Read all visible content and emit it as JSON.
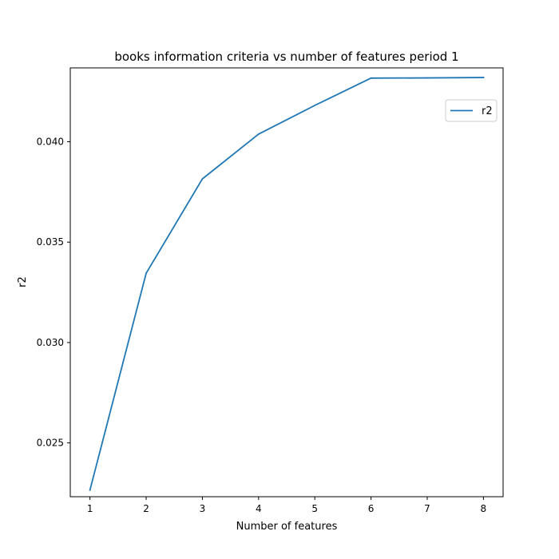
{
  "chart_data": {
    "type": "line",
    "title": "books information criteria vs number of features period 1",
    "xlabel": "Number of features",
    "ylabel": "r2",
    "x": [
      1,
      2,
      3,
      4,
      5,
      6,
      7,
      8
    ],
    "series": [
      {
        "name": "r2",
        "color": "#1f77b4",
        "values": [
          0.02265,
          0.03345,
          0.03815,
          0.04038,
          0.04181,
          0.04317,
          0.04318,
          0.0432
        ]
      }
    ],
    "xlim": [
      0.65,
      8.35
    ],
    "ylim": [
      0.02232,
      0.04368
    ],
    "xticks": [
      1,
      2,
      3,
      4,
      5,
      6,
      7,
      8
    ],
    "xtick_labels": [
      "1",
      "2",
      "3",
      "4",
      "5",
      "6",
      "7",
      "8"
    ],
    "yticks": [
      0.025,
      0.03,
      0.035,
      0.04
    ],
    "ytick_labels": [
      "0.025",
      "0.030",
      "0.035",
      "0.040"
    ],
    "grid": false,
    "legend_position": "upper-right"
  }
}
